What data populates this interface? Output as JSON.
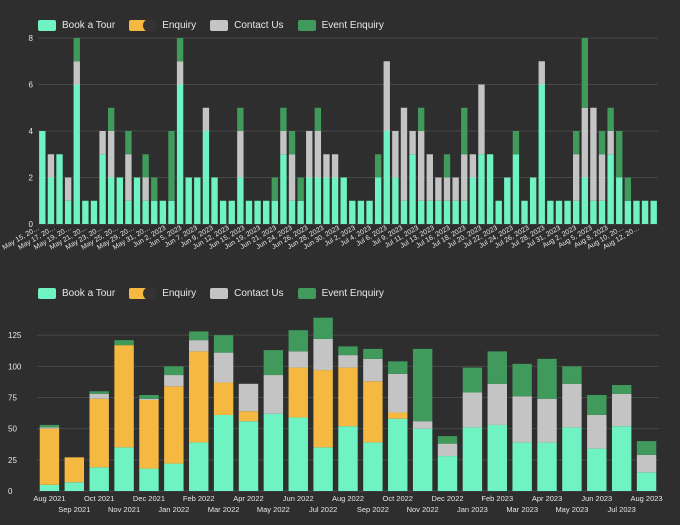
{
  "colors": {
    "background": "#2e2e2e",
    "grid": "#474747",
    "axis_text": "#e6e6e6",
    "series": [
      "#6ff3c3",
      "#f5b942",
      "#c4c4c4",
      "#3f9a5c"
    ],
    "legend_swatches": [
      "#6ff3c3",
      "#f5b942",
      "#333333",
      "#c4c4c4",
      "#3f9a5c"
    ]
  },
  "chart_data": [
    {
      "type": "bar",
      "stacked": true,
      "title": "",
      "legend": [
        "Book a Tour",
        "Enquiry",
        "Contact Us",
        "Event Enquiry"
      ],
      "ylim": [
        0,
        8
      ],
      "y_ticks": [
        0,
        2,
        4,
        6,
        8
      ],
      "grid": true,
      "x_tick_labels": [
        "May 15, 20…",
        "May 17, 20…",
        "May 19, 20…",
        "May 21, 20…",
        "May 23, 20…",
        "May 25, 20…",
        "May 29, 20…",
        "May 31, 20…",
        "Jun 2, 2023",
        "Jun 5, 2023",
        "Jun 7, 2023",
        "Jun 9, 2023",
        "Jun 12, 2023",
        "Jun 15, 2023",
        "Jun 19, 2023",
        "Jun 21, 2023",
        "Jun 24, 2023",
        "Jun 26, 2023",
        "Jun 28, 2023",
        "Jun 30, 2023",
        "Jul 2, 2023",
        "Jul 4, 2023",
        "Jul 6, 2023",
        "Jul 9, 2023",
        "Jul 11, 2023",
        "Jul 13, 2023",
        "Jul 16, 2023",
        "Jul 18, 2023",
        "Jul 20, 2023",
        "Jul 22, 2023",
        "Jul 24, 2023",
        "Jul 26, 2023",
        "Jul 28, 2023",
        "Jul 31, 2023",
        "Aug 2, 2023",
        "Aug 5, 2023",
        "Aug 8, 2023",
        "Aug 10, 20…",
        "Aug 12, 20…"
      ],
      "series": [
        {
          "name": "Book a Tour",
          "values": [
            4,
            2,
            3,
            1,
            6,
            1,
            1,
            3,
            2,
            2,
            1,
            2,
            1,
            1,
            1,
            1,
            6,
            2,
            2,
            4,
            2,
            1,
            1,
            2,
            1,
            1,
            1,
            1,
            3,
            1,
            1,
            2,
            2,
            2,
            2,
            2,
            1,
            1,
            1,
            2,
            4,
            2,
            1,
            3,
            1,
            1,
            1,
            1,
            1,
            1,
            2,
            3,
            3,
            1,
            2,
            3,
            1,
            2,
            6,
            1,
            1,
            1,
            1,
            2,
            1,
            1,
            3,
            2,
            1,
            1,
            1,
            1
          ]
        },
        {
          "name": "Enquiry",
          "values": [
            0,
            0,
            0,
            0,
            0,
            0,
            0,
            0,
            0,
            0,
            0,
            0,
            0,
            0,
            0,
            0,
            0,
            0,
            0,
            0,
            0,
            0,
            0,
            0,
            0,
            0,
            0,
            0,
            0,
            0,
            0,
            0,
            0,
            0,
            0,
            0,
            0,
            0,
            0,
            0,
            0,
            0,
            0,
            0,
            0,
            0,
            0,
            0,
            0,
            0,
            0,
            0,
            0,
            0,
            0,
            0,
            0,
            0,
            0,
            0,
            0,
            0,
            0,
            0,
            0,
            0,
            0,
            0,
            0,
            0,
            0,
            0
          ]
        },
        {
          "name": "Contact Us",
          "values": [
            0,
            1,
            0,
            1,
            1,
            0,
            0,
            1,
            2,
            0,
            2,
            0,
            1,
            0,
            0,
            0,
            1,
            0,
            0,
            1,
            0,
            0,
            0,
            2,
            0,
            0,
            0,
            0,
            1,
            2,
            0,
            2,
            2,
            1,
            1,
            0,
            0,
            0,
            0,
            0,
            3,
            2,
            4,
            1,
            3,
            2,
            1,
            1,
            1,
            2,
            1,
            3,
            0,
            0,
            0,
            0,
            0,
            0,
            1,
            0,
            0,
            0,
            2,
            3,
            4,
            2,
            1,
            0,
            0,
            0,
            0,
            0
          ]
        },
        {
          "name": "Event Enquiry",
          "values": [
            0,
            0,
            0,
            0,
            1,
            0,
            0,
            0,
            1,
            0,
            1,
            0,
            1,
            1,
            0,
            3,
            1,
            0,
            0,
            0,
            0,
            0,
            0,
            1,
            0,
            0,
            0,
            1,
            1,
            1,
            1,
            0,
            1,
            0,
            0,
            0,
            0,
            0,
            0,
            1,
            0,
            0,
            0,
            0,
            1,
            0,
            0,
            1,
            0,
            2,
            0,
            0,
            0,
            0,
            0,
            1,
            0,
            0,
            0,
            0,
            0,
            0,
            1,
            3,
            0,
            1,
            1,
            2,
            1,
            0,
            0,
            0
          ]
        }
      ]
    },
    {
      "type": "bar",
      "stacked": true,
      "title": "",
      "legend": [
        "Book a Tour",
        "Enquiry",
        "Contact Us",
        "Event Enquiry"
      ],
      "ylim": [
        0,
        150
      ],
      "y_ticks": [
        0,
        25,
        50,
        75,
        100,
        125
      ],
      "grid": true,
      "categories": [
        "Aug 2021",
        "Sep 2021",
        "Oct 2021",
        "Nov 2021",
        "Dec 2021",
        "Jan 2022",
        "Feb 2022",
        "Mar 2022",
        "Apr 2022",
        "May 2022",
        "Jun 2022",
        "Jul 2022",
        "Aug 2022",
        "Sep 2022",
        "Oct 2022",
        "Nov 2022",
        "Dec 2022",
        "Jan 2023",
        "Feb 2023",
        "Mar 2023",
        "Apr 2023",
        "May 2023",
        "Jun 2023",
        "Jul 2023",
        "Aug 2023"
      ],
      "series": [
        {
          "name": "Book a Tour",
          "values": [
            5,
            7,
            19,
            35,
            18,
            22,
            39,
            61,
            56,
            62,
            59,
            35,
            52,
            39,
            58,
            50,
            28,
            51,
            53,
            39,
            39,
            51,
            34,
            52,
            15
          ]
        },
        {
          "name": "Enquiry",
          "values": [
            45,
            20,
            55,
            82,
            55,
            62,
            73,
            26,
            8,
            0,
            40,
            62,
            47,
            49,
            5,
            0,
            0,
            0,
            0,
            0,
            0,
            0,
            0,
            0,
            0
          ]
        },
        {
          "name": "Contact Us",
          "values": [
            1,
            0,
            4,
            0,
            1,
            9,
            9,
            24,
            22,
            31,
            13,
            25,
            10,
            18,
            31,
            6,
            10,
            28,
            33,
            37,
            35,
            35,
            27,
            26,
            14
          ]
        },
        {
          "name": "Event Enquiry",
          "values": [
            2,
            0,
            2,
            4,
            3,
            7,
            7,
            14,
            0,
            20,
            17,
            17,
            7,
            8,
            10,
            58,
            6,
            20,
            26,
            26,
            32,
            14,
            16,
            7,
            11
          ]
        }
      ]
    }
  ]
}
